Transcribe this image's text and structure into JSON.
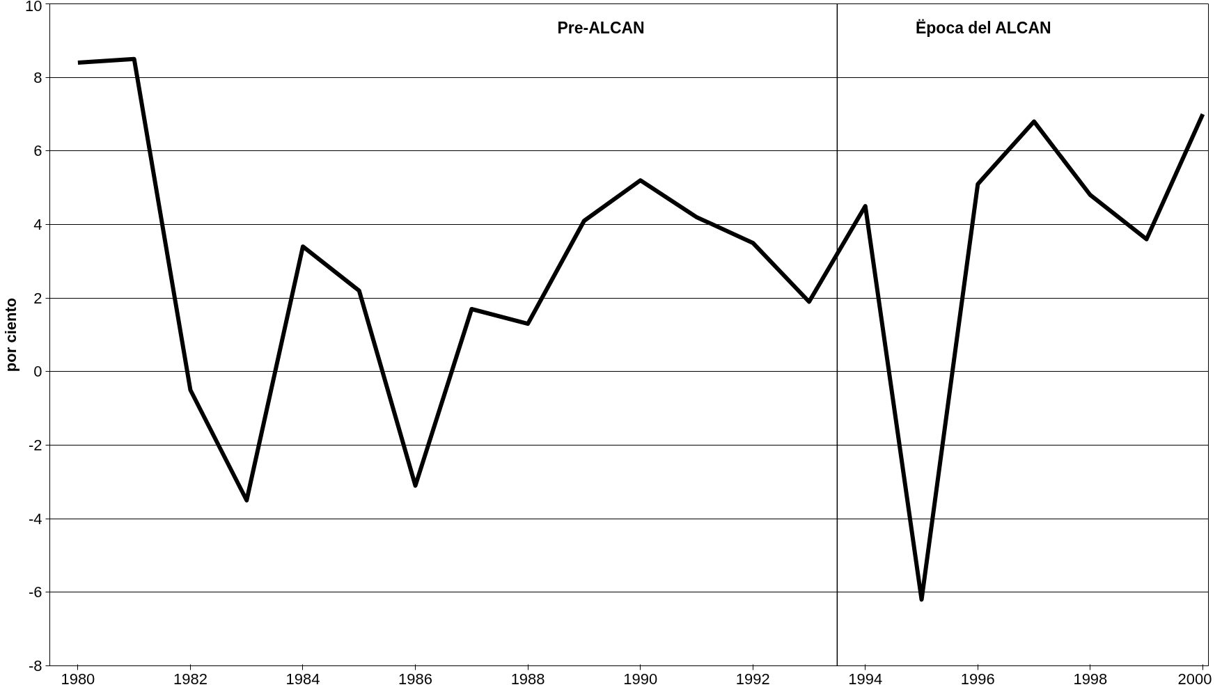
{
  "chart_data": {
    "type": "line",
    "ylabel": "por ciento",
    "x": [
      1980,
      1981,
      1982,
      1983,
      1984,
      1985,
      1986,
      1987,
      1988,
      1989,
      1990,
      1991,
      1992,
      1993,
      1994,
      1995,
      1996,
      1997,
      1998,
      1999,
      2000
    ],
    "series": [
      {
        "color": "#000000",
        "values": [
          8.4,
          8.5,
          -0.5,
          -3.5,
          3.4,
          2.2,
          -3.1,
          1.7,
          1.3,
          4.1,
          5.2,
          4.2,
          3.5,
          1.9,
          4.5,
          -6.2,
          5.1,
          6.8,
          4.8,
          3.6,
          7.0
        ]
      }
    ],
    "xlim": [
      1979.5,
      2000.1
    ],
    "xticks": [
      1980,
      1982,
      1984,
      1986,
      1988,
      1990,
      1992,
      1994,
      1996,
      1998,
      2000
    ],
    "ylim": [
      -8,
      10
    ],
    "yticks": [
      -8,
      -6,
      -4,
      -2,
      0,
      2,
      4,
      6,
      8,
      10
    ],
    "ref_lines": [
      {
        "axis": "x",
        "value": 1993.5,
        "color": "#000000"
      }
    ],
    "annotations": [
      "Pre-ALCAN",
      "Ëpoca del ALCAN"
    ],
    "grid": "y",
    "marker": "none",
    "line_style": "solid"
  }
}
